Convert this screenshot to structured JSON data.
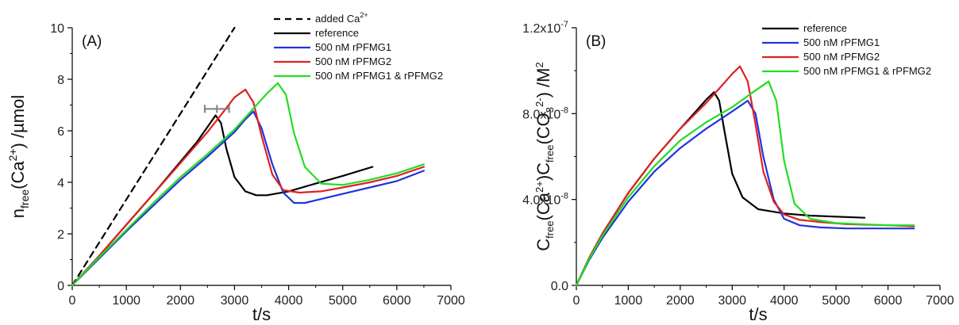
{
  "chart_data": [
    {
      "type": "line",
      "panel_label": "(A)",
      "xlabel": "t/s",
      "ylabel": "n_free(Ca2+) /µmol",
      "ylabel_parts": {
        "main": "n",
        "sub": "free",
        "paren_open": "(Ca",
        "sup": "2+",
        "rest": ") /µmol"
      },
      "xlim": [
        0,
        7000
      ],
      "ylim": [
        0,
        10
      ],
      "x_ticks": [
        0,
        1000,
        2000,
        3000,
        4000,
        5000,
        6000,
        7000
      ],
      "y_ticks": [
        0,
        2,
        4,
        6,
        8,
        10
      ],
      "x_tick_labels": [
        "0",
        "1000",
        "2000",
        "3000",
        "4000",
        "5000",
        "6000",
        "7000"
      ],
      "y_tick_labels": [
        "0",
        "2",
        "4",
        "6",
        "8",
        "10"
      ],
      "legend_position": "top-right",
      "series": [
        {
          "name": "added Ca",
          "name_sup": "2+",
          "color": "#000000",
          "dashed": true,
          "x": [
            0,
            3000
          ],
          "y": [
            0,
            10
          ]
        },
        {
          "name": "reference",
          "color": "#000000",
          "dashed": false,
          "x": [
            0,
            500,
            1000,
            1500,
            2000,
            2300,
            2500,
            2650,
            2750,
            2850,
            3000,
            3200,
            3400,
            3600,
            4000,
            4500,
            5000,
            5550
          ],
          "y": [
            0,
            1.15,
            2.35,
            3.55,
            4.8,
            5.55,
            6.15,
            6.6,
            6.3,
            5.3,
            4.2,
            3.65,
            3.5,
            3.5,
            3.65,
            3.95,
            4.25,
            4.6
          ]
        },
        {
          "name": "500 nM rPFMG1",
          "color": "#2233dd",
          "dashed": false,
          "x": [
            0,
            500,
            1000,
            1500,
            2000,
            2500,
            3000,
            3200,
            3350,
            3500,
            3700,
            3900,
            4100,
            4300,
            4600,
            5000,
            5500,
            6000,
            6500
          ],
          "y": [
            0,
            1.05,
            2.1,
            3.1,
            4.1,
            5.0,
            5.95,
            6.45,
            6.75,
            6.1,
            4.7,
            3.6,
            3.2,
            3.2,
            3.35,
            3.55,
            3.8,
            4.05,
            4.45
          ]
        },
        {
          "name": "500 nM rPFMG2",
          "color": "#dd2222",
          "dashed": false,
          "x": [
            0,
            500,
            1000,
            1500,
            2000,
            2500,
            2800,
            3000,
            3200,
            3350,
            3500,
            3700,
            3900,
            4200,
            4600,
            5000,
            5500,
            6000,
            6500
          ],
          "y": [
            0,
            1.15,
            2.35,
            3.55,
            4.75,
            5.95,
            6.75,
            7.3,
            7.6,
            7.1,
            5.8,
            4.3,
            3.7,
            3.6,
            3.65,
            3.8,
            4.0,
            4.25,
            4.6
          ]
        },
        {
          "name": "500 nM rPFMG1 & rPFMG2",
          "color": "#22dd22",
          "dashed": false,
          "x": [
            0,
            500,
            1000,
            1500,
            2000,
            2500,
            3000,
            3300,
            3600,
            3800,
            3950,
            4100,
            4300,
            4600,
            5000,
            5500,
            6000,
            6500
          ],
          "y": [
            0,
            1.1,
            2.15,
            3.2,
            4.2,
            5.1,
            6.05,
            6.75,
            7.45,
            7.85,
            7.4,
            5.9,
            4.6,
            3.95,
            3.9,
            4.1,
            4.35,
            4.7
          ]
        }
      ],
      "annotations": [
        {
          "type": "horizontal_error_bar",
          "x_start": 2450,
          "x_end": 2900,
          "y": 6.85,
          "color": "#808080"
        }
      ]
    },
    {
      "type": "line",
      "panel_label": "(B)",
      "xlabel": "t/s",
      "ylabel": "C_free(Ca2+)C_free(CO3 2-) /M2",
      "ylabel_parts": {
        "c1": "C",
        "sub1": "free",
        "p1": "(Ca",
        "sup1": "2+",
        "p2": ")C",
        "sub2": "free",
        "p3": "(CO",
        "sub3": "3",
        "sup3": "2-",
        "p4": ") /M",
        "sup4": "2"
      },
      "xlim": [
        0,
        7000
      ],
      "ylim": [
        0,
        1.2e-07
      ],
      "x_ticks": [
        0,
        1000,
        2000,
        3000,
        4000,
        5000,
        6000,
        7000
      ],
      "y_ticks": [
        0,
        4e-08,
        8e-08,
        1.2e-07
      ],
      "x_tick_labels": [
        "0",
        "1000",
        "2000",
        "3000",
        "4000",
        "5000",
        "6000",
        "7000"
      ],
      "y_tick_labels": [
        "0.0",
        "4.0x10",
        "8.0x10",
        "1.2x10"
      ],
      "y_tick_exponents": [
        "",
        "-8",
        "-8",
        "-7"
      ],
      "legend_position": "top-right",
      "series": [
        {
          "name": "reference",
          "color": "#000000",
          "dashed": false,
          "x": [
            0,
            250,
            500,
            1000,
            1500,
            2000,
            2300,
            2500,
            2650,
            2750,
            2850,
            3000,
            3200,
            3500,
            4000,
            4500,
            5000,
            5550
          ],
          "y": [
            0,
            1.3e-08,
            2.4e-08,
            4.3e-08,
            5.9e-08,
            7.3e-08,
            8.1e-08,
            8.65e-08,
            9e-08,
            8.6e-08,
            7.2e-08,
            5.2e-08,
            4.1e-08,
            3.55e-08,
            3.35e-08,
            3.25e-08,
            3.2e-08,
            3.15e-08
          ]
        },
        {
          "name": "500 nM rPFMG1",
          "color": "#2233dd",
          "dashed": false,
          "x": [
            0,
            250,
            500,
            1000,
            1500,
            2000,
            2500,
            3000,
            3300,
            3450,
            3600,
            3800,
            4000,
            4300,
            4700,
            5200,
            6000,
            6500
          ],
          "y": [
            0,
            1.2e-08,
            2.2e-08,
            3.9e-08,
            5.3e-08,
            6.4e-08,
            7.3e-08,
            8.1e-08,
            8.6e-08,
            8e-08,
            6e-08,
            4e-08,
            3.1e-08,
            2.8e-08,
            2.7e-08,
            2.65e-08,
            2.65e-08,
            2.65e-08
          ]
        },
        {
          "name": "500 nM rPFMG2",
          "color": "#dd2222",
          "dashed": false,
          "x": [
            0,
            250,
            500,
            1000,
            1500,
            2000,
            2500,
            2800,
            3000,
            3150,
            3300,
            3450,
            3600,
            3800,
            4000,
            4300,
            4700,
            5200,
            6000,
            6500
          ],
          "y": [
            0,
            1.3e-08,
            2.4e-08,
            4.3e-08,
            5.9e-08,
            7.3e-08,
            8.5e-08,
            9.3e-08,
            9.85e-08,
            1.02e-07,
            9.5e-08,
            7.5e-08,
            5.3e-08,
            3.9e-08,
            3.3e-08,
            3.05e-08,
            2.95e-08,
            2.85e-08,
            2.8e-08,
            2.75e-08
          ]
        },
        {
          "name": "500 nM rPFMG1 & rPFMG2",
          "color": "#22dd22",
          "dashed": false,
          "x": [
            0,
            250,
            500,
            1000,
            1500,
            2000,
            2500,
            3000,
            3400,
            3700,
            3850,
            4000,
            4200,
            4500,
            5000,
            5500,
            6000,
            6500
          ],
          "y": [
            0,
            1.25e-08,
            2.3e-08,
            4.1e-08,
            5.55e-08,
            6.75e-08,
            7.6e-08,
            8.3e-08,
            9e-08,
            9.5e-08,
            8.6e-08,
            5.8e-08,
            3.8e-08,
            3.1e-08,
            2.9e-08,
            2.85e-08,
            2.8e-08,
            2.8e-08
          ]
        }
      ],
      "annotations": []
    }
  ]
}
